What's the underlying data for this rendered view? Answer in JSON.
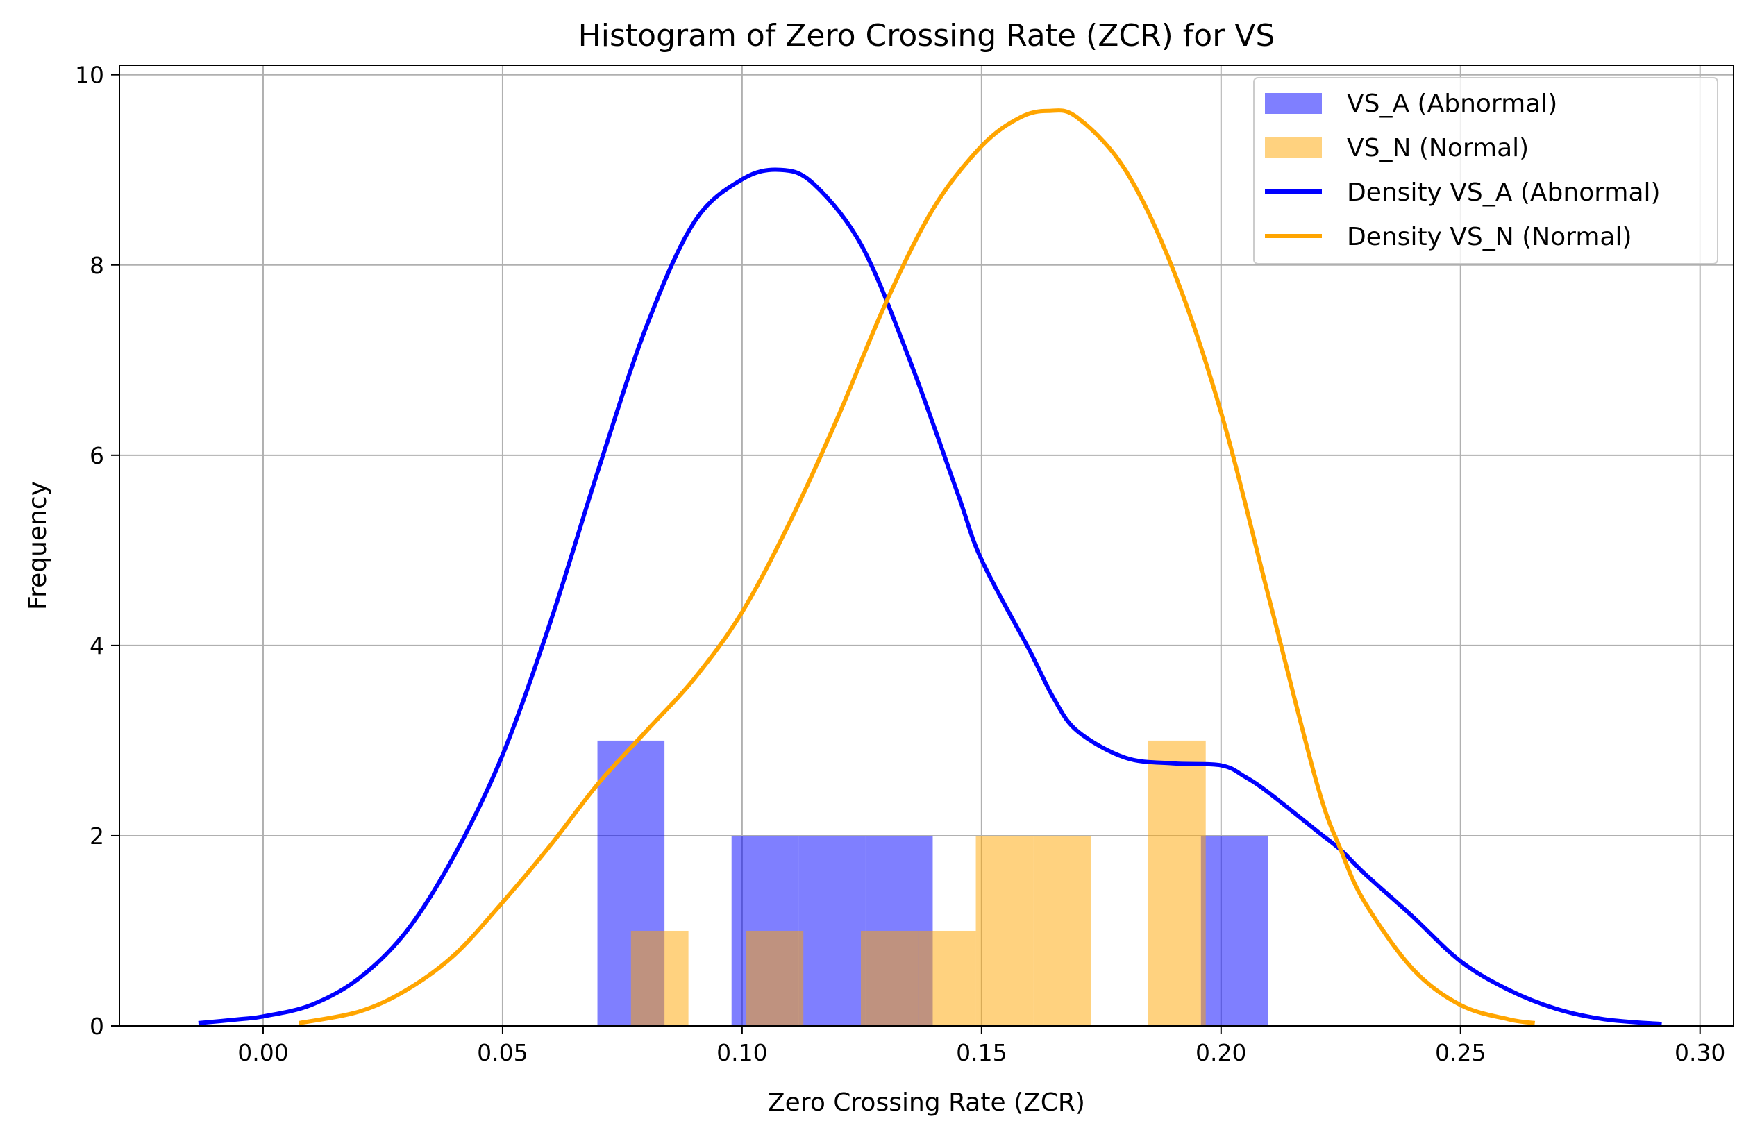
{
  "chart_data": {
    "type": "bar",
    "title": "Histogram of Zero Crossing Rate (ZCR) for VS",
    "xlabel": "Zero Crossing Rate (ZCR)",
    "ylabel": "Frequency",
    "xlim": [
      -0.03,
      0.307
    ],
    "ylim": [
      0,
      10.1
    ],
    "xticks": [
      0.0,
      0.05,
      0.1,
      0.15,
      0.2,
      0.25,
      0.3
    ],
    "xtick_labels": [
      "0.00",
      "0.05",
      "0.10",
      "0.15",
      "0.20",
      "0.25",
      "0.30"
    ],
    "yticks": [
      0,
      2,
      4,
      6,
      8,
      10
    ],
    "ytick_labels": [
      "0",
      "2",
      "4",
      "6",
      "8",
      "10"
    ],
    "grid": true,
    "legend_position": "top-right",
    "histograms": [
      {
        "name": "VS_A (Abnormal)",
        "color": "#0000ff",
        "opacity": 0.5,
        "bins": [
          {
            "x0": 0.0698,
            "x1": 0.0838,
            "count": 3
          },
          {
            "x0": 0.0978,
            "x1": 0.1118,
            "count": 2
          },
          {
            "x0": 0.1118,
            "x1": 0.1258,
            "count": 2
          },
          {
            "x0": 0.1258,
            "x1": 0.1398,
            "count": 2
          },
          {
            "x0": 0.1958,
            "x1": 0.2098,
            "count": 2
          }
        ]
      },
      {
        "name": "VS_N (Normal)",
        "color": "#ffa500",
        "opacity": 0.5,
        "bins": [
          {
            "x0": 0.0768,
            "x1": 0.0888,
            "count": 1
          },
          {
            "x0": 0.1008,
            "x1": 0.1128,
            "count": 1
          },
          {
            "x0": 0.1248,
            "x1": 0.1368,
            "count": 1
          },
          {
            "x0": 0.1368,
            "x1": 0.1488,
            "count": 1
          },
          {
            "x0": 0.1488,
            "x1": 0.1608,
            "count": 2
          },
          {
            "x0": 0.1608,
            "x1": 0.1728,
            "count": 2
          },
          {
            "x0": 0.1848,
            "x1": 0.1968,
            "count": 3
          }
        ]
      }
    ],
    "series": [
      {
        "name": "Density VS_A (Abnormal)",
        "color": "#0000ff",
        "type": "line",
        "points": [
          [
            -0.0135,
            0.03
          ],
          [
            -0.005,
            0.07
          ],
          [
            0.0,
            0.1
          ],
          [
            0.01,
            0.22
          ],
          [
            0.02,
            0.5
          ],
          [
            0.03,
            1.0
          ],
          [
            0.04,
            1.8
          ],
          [
            0.05,
            2.85
          ],
          [
            0.06,
            4.25
          ],
          [
            0.07,
            5.85
          ],
          [
            0.08,
            7.35
          ],
          [
            0.09,
            8.45
          ],
          [
            0.1,
            8.9
          ],
          [
            0.108,
            9.0
          ],
          [
            0.115,
            8.85
          ],
          [
            0.125,
            8.2
          ],
          [
            0.135,
            7.0
          ],
          [
            0.145,
            5.6
          ],
          [
            0.15,
            4.9
          ],
          [
            0.16,
            3.95
          ],
          [
            0.165,
            3.45
          ],
          [
            0.17,
            3.1
          ],
          [
            0.18,
            2.82
          ],
          [
            0.19,
            2.76
          ],
          [
            0.2,
            2.74
          ],
          [
            0.205,
            2.62
          ],
          [
            0.21,
            2.45
          ],
          [
            0.22,
            2.05
          ],
          [
            0.225,
            1.85
          ],
          [
            0.23,
            1.6
          ],
          [
            0.24,
            1.15
          ],
          [
            0.25,
            0.68
          ],
          [
            0.26,
            0.38
          ],
          [
            0.27,
            0.18
          ],
          [
            0.28,
            0.07
          ],
          [
            0.292,
            0.02
          ]
        ]
      },
      {
        "name": "Density VS_N (Normal)",
        "color": "#ffa500",
        "type": "line",
        "points": [
          [
            0.0075,
            0.03
          ],
          [
            0.02,
            0.15
          ],
          [
            0.03,
            0.38
          ],
          [
            0.04,
            0.75
          ],
          [
            0.05,
            1.3
          ],
          [
            0.06,
            1.9
          ],
          [
            0.07,
            2.55
          ],
          [
            0.08,
            3.1
          ],
          [
            0.09,
            3.65
          ],
          [
            0.1,
            4.35
          ],
          [
            0.11,
            5.3
          ],
          [
            0.12,
            6.4
          ],
          [
            0.13,
            7.6
          ],
          [
            0.14,
            8.6
          ],
          [
            0.15,
            9.25
          ],
          [
            0.158,
            9.55
          ],
          [
            0.164,
            9.62
          ],
          [
            0.17,
            9.55
          ],
          [
            0.18,
            9.0
          ],
          [
            0.19,
            7.95
          ],
          [
            0.2,
            6.45
          ],
          [
            0.21,
            4.5
          ],
          [
            0.22,
            2.55
          ],
          [
            0.225,
            1.85
          ],
          [
            0.23,
            1.3
          ],
          [
            0.24,
            0.6
          ],
          [
            0.25,
            0.22
          ],
          [
            0.26,
            0.07
          ],
          [
            0.2655,
            0.03
          ]
        ]
      }
    ]
  }
}
